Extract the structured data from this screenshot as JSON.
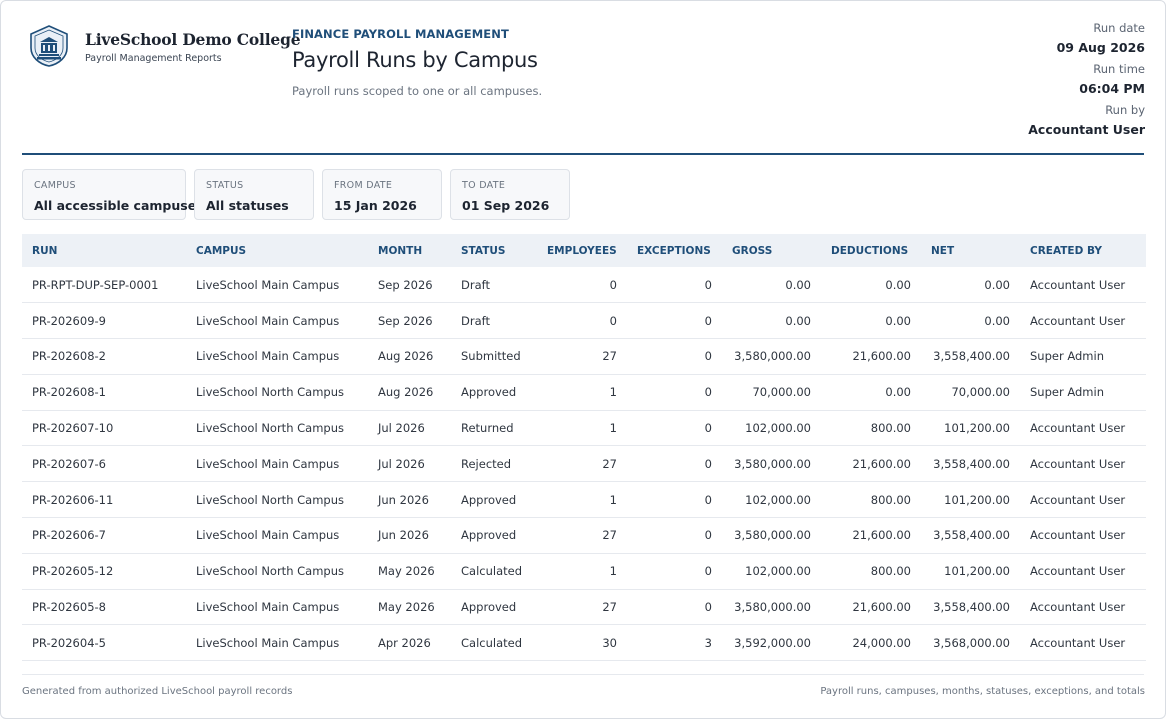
{
  "header": {
    "college_name": "LiveSchool Demo College",
    "college_subtitle": "Payroll Management Reports",
    "logo_icon": "school-crest-icon",
    "eyebrow": "FINANCE PAYROLL MANAGEMENT",
    "title": "Payroll Runs by Campus",
    "description": "Payroll runs scoped to one or all campuses."
  },
  "meta": {
    "run_date_label": "Run date",
    "run_date": "09 Aug 2026",
    "run_time_label": "Run time",
    "run_time": "06:04 PM",
    "run_by_label": "Run by",
    "run_by": "Accountant User"
  },
  "filters": [
    {
      "label": "CAMPUS",
      "value": "All accessible campuses"
    },
    {
      "label": "STATUS",
      "value": "All statuses"
    },
    {
      "label": "FROM DATE",
      "value": "15 Jan 2026"
    },
    {
      "label": "TO DATE",
      "value": "01 Sep 2026"
    }
  ],
  "table": {
    "columns": [
      "RUN",
      "CAMPUS",
      "MONTH",
      "STATUS",
      "EMPLOYEES",
      "EXCEPTIONS",
      "GROSS",
      "DEDUCTIONS",
      "NET",
      "CREATED BY"
    ],
    "rows": [
      [
        "PR-RPT-DUP-SEP-0001",
        "LiveSchool Main Campus",
        "Sep 2026",
        "Draft",
        "0",
        "0",
        "0.00",
        "0.00",
        "0.00",
        "Accountant User"
      ],
      [
        "PR-202609-9",
        "LiveSchool Main Campus",
        "Sep 2026",
        "Draft",
        "0",
        "0",
        "0.00",
        "0.00",
        "0.00",
        "Accountant User"
      ],
      [
        "PR-202608-2",
        "LiveSchool Main Campus",
        "Aug 2026",
        "Submitted",
        "27",
        "0",
        "3,580,000.00",
        "21,600.00",
        "3,558,400.00",
        "Super Admin"
      ],
      [
        "PR-202608-1",
        "LiveSchool North Campus",
        "Aug 2026",
        "Approved",
        "1",
        "0",
        "70,000.00",
        "0.00",
        "70,000.00",
        "Super Admin"
      ],
      [
        "PR-202607-10",
        "LiveSchool North Campus",
        "Jul 2026",
        "Returned",
        "1",
        "0",
        "102,000.00",
        "800.00",
        "101,200.00",
        "Accountant User"
      ],
      [
        "PR-202607-6",
        "LiveSchool Main Campus",
        "Jul 2026",
        "Rejected",
        "27",
        "0",
        "3,580,000.00",
        "21,600.00",
        "3,558,400.00",
        "Accountant User"
      ],
      [
        "PR-202606-11",
        "LiveSchool North Campus",
        "Jun 2026",
        "Approved",
        "1",
        "0",
        "102,000.00",
        "800.00",
        "101,200.00",
        "Accountant User"
      ],
      [
        "PR-202606-7",
        "LiveSchool Main Campus",
        "Jun 2026",
        "Approved",
        "27",
        "0",
        "3,580,000.00",
        "21,600.00",
        "3,558,400.00",
        "Accountant User"
      ],
      [
        "PR-202605-12",
        "LiveSchool North Campus",
        "May 2026",
        "Calculated",
        "1",
        "0",
        "102,000.00",
        "800.00",
        "101,200.00",
        "Accountant User"
      ],
      [
        "PR-202605-8",
        "LiveSchool Main Campus",
        "May 2026",
        "Approved",
        "27",
        "0",
        "3,580,000.00",
        "21,600.00",
        "3,558,400.00",
        "Accountant User"
      ],
      [
        "PR-202604-5",
        "LiveSchool Main Campus",
        "Apr 2026",
        "Calculated",
        "30",
        "3",
        "3,592,000.00",
        "24,000.00",
        "3,568,000.00",
        "Accountant User"
      ]
    ]
  },
  "footer": {
    "left": "Generated from authorized LiveSchool payroll records",
    "right": "Payroll runs, campuses, months, statuses, exceptions, and totals"
  },
  "colors": {
    "accent": "#1f4e79",
    "header_bg": "#edf1f6"
  }
}
